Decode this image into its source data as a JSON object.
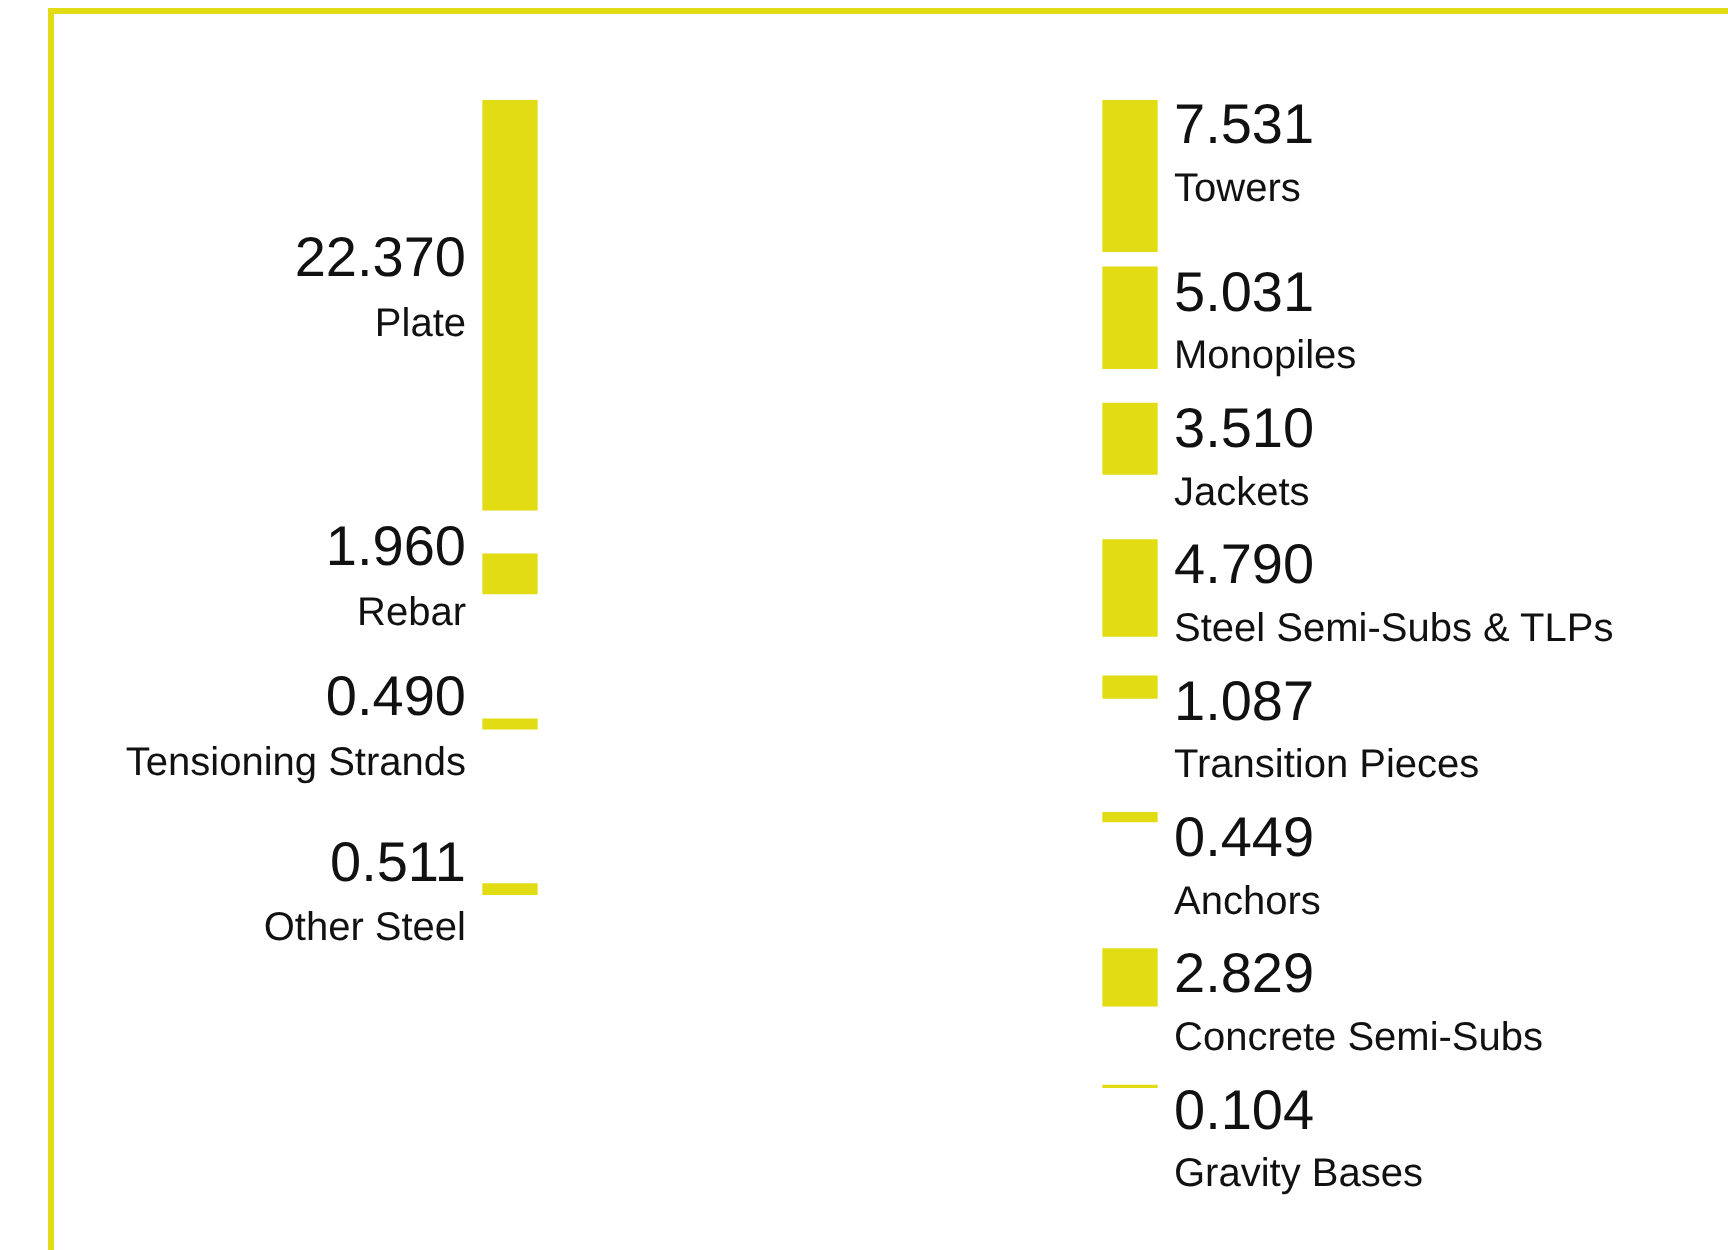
{
  "chart_data": {
    "type": "other",
    "categories": [
      "Plate",
      "Rebar",
      "Tensioning Strands",
      "Other Steel",
      "Towers",
      "Monopiles",
      "Jackets",
      "Steel Semi-Subs & TLPs",
      "Transition Pieces",
      "Anchors",
      "Concrete Semi-Subs",
      "Gravity Bases"
    ],
    "series": [
      {
        "color": "#e1dc14",
        "values": [
          22.37,
          1.96,
          0.49,
          0.511,
          null,
          null,
          null,
          null,
          null,
          null,
          null,
          null
        ],
        "value_labels": [
          "22.370",
          "1.960",
          "0.490",
          "0.511",
          null,
          null,
          null,
          null,
          null,
          null,
          null,
          null
        ]
      },
      {
        "color": "#e1dc14",
        "values": [
          null,
          null,
          null,
          null,
          7.531,
          5.031,
          3.51,
          4.79,
          1.087,
          0.449,
          2.829,
          0.104
        ],
        "value_labels": [
          null,
          null,
          null,
          null,
          "7.531",
          "5.031",
          "3.510",
          "4.790",
          "1.087",
          "0.449",
          "2.829",
          "0.104"
        ]
      }
    ],
    "legend": false
  }
}
